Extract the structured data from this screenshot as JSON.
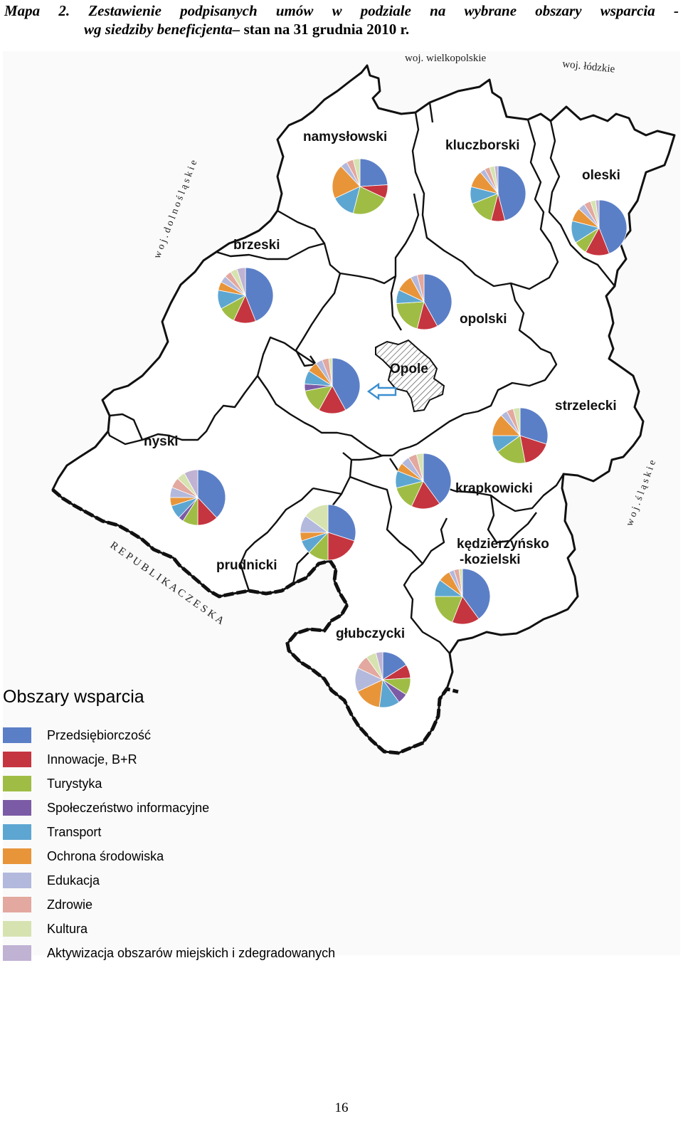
{
  "caption": {
    "words": [
      "Mapa",
      "2.",
      "Zestawienie",
      "podpisanych",
      "umów",
      "w",
      "podziale",
      "na",
      "wybrane",
      "obszary",
      "wsparcia",
      "-"
    ],
    "line2_italic": "wg siedziby beneficjenta–",
    "line2_normal": " stan na 31 grudnia 2010 r."
  },
  "neighbors": {
    "north": "woj. wielkopolskie",
    "northeast": "woj. łódzkie",
    "west": "w o j . d o l n o ś l ą s k i e",
    "east": "w o j . ś l ą s k i e",
    "south": "R E P U B L I K A   C Z E S K A"
  },
  "categories": [
    {
      "label": "Przedsiębiorczość",
      "color": "#5b7fc7"
    },
    {
      "label": "Innowacje, B+R",
      "color": "#c5353f"
    },
    {
      "label": "Turystyka",
      "color": "#9fbd45"
    },
    {
      "label": "Społeczeństwo informacyjne",
      "color": "#7b5ba6"
    },
    {
      "label": "Transport",
      "color": "#5ea6d2"
    },
    {
      "label": "Ochrona środowiska",
      "color": "#e8953a"
    },
    {
      "label": "Edukacja",
      "color": "#b3b9dc"
    },
    {
      "label": "Zdrowie",
      "color": "#e3a89f"
    },
    {
      "label": "Kultura",
      "color": "#d6e3b0"
    },
    {
      "label": "Aktywizacja obszarów miejskich i zdegradowanych",
      "color": "#c0b2d3"
    }
  ],
  "legend_title": "Obszary wsparcia",
  "regions": [
    {
      "name": "namysłowski",
      "shares": [
        24,
        8,
        22,
        0,
        14,
        20,
        4,
        4,
        4,
        0
      ]
    },
    {
      "name": "kluczborski",
      "shares": [
        46,
        8,
        15,
        0,
        10,
        10,
        3,
        3,
        3,
        2
      ]
    },
    {
      "name": "oleski",
      "shares": [
        44,
        14,
        8,
        0,
        13,
        8,
        4,
        4,
        3,
        2
      ]
    },
    {
      "name": "brzeski",
      "shares": [
        44,
        13,
        10,
        0,
        11,
        5,
        4,
        4,
        4,
        5
      ]
    },
    {
      "name": "opolski",
      "shares": [
        42,
        12,
        20,
        0,
        8,
        10,
        4,
        4,
        0,
        0
      ]
    },
    {
      "name": "Opole",
      "shares": [
        42,
        16,
        14,
        4,
        8,
        6,
        4,
        4,
        2,
        0
      ]
    },
    {
      "name": "strzelecki",
      "shares": [
        30,
        17,
        18,
        0,
        10,
        13,
        4,
        4,
        4,
        0
      ]
    },
    {
      "name": "nyski",
      "shares": [
        38,
        12,
        9,
        3,
        8,
        5,
        6,
        6,
        5,
        8
      ]
    },
    {
      "name": "krapkowicki",
      "shares": [
        40,
        17,
        14,
        0,
        10,
        5,
        5,
        5,
        4,
        0
      ]
    },
    {
      "name": "prudnicki",
      "shares": [
        30,
        20,
        12,
        0,
        8,
        5,
        10,
        0,
        15,
        0
      ]
    },
    {
      "name": "kędzierzyńsko -kozielski",
      "shares": [
        40,
        16,
        19,
        0,
        10,
        7,
        3,
        3,
        2,
        0
      ]
    },
    {
      "name": "głubczycki",
      "shares": [
        16,
        8,
        10,
        6,
        12,
        16,
        14,
        8,
        6,
        4
      ]
    }
  ],
  "page_number": "16"
}
